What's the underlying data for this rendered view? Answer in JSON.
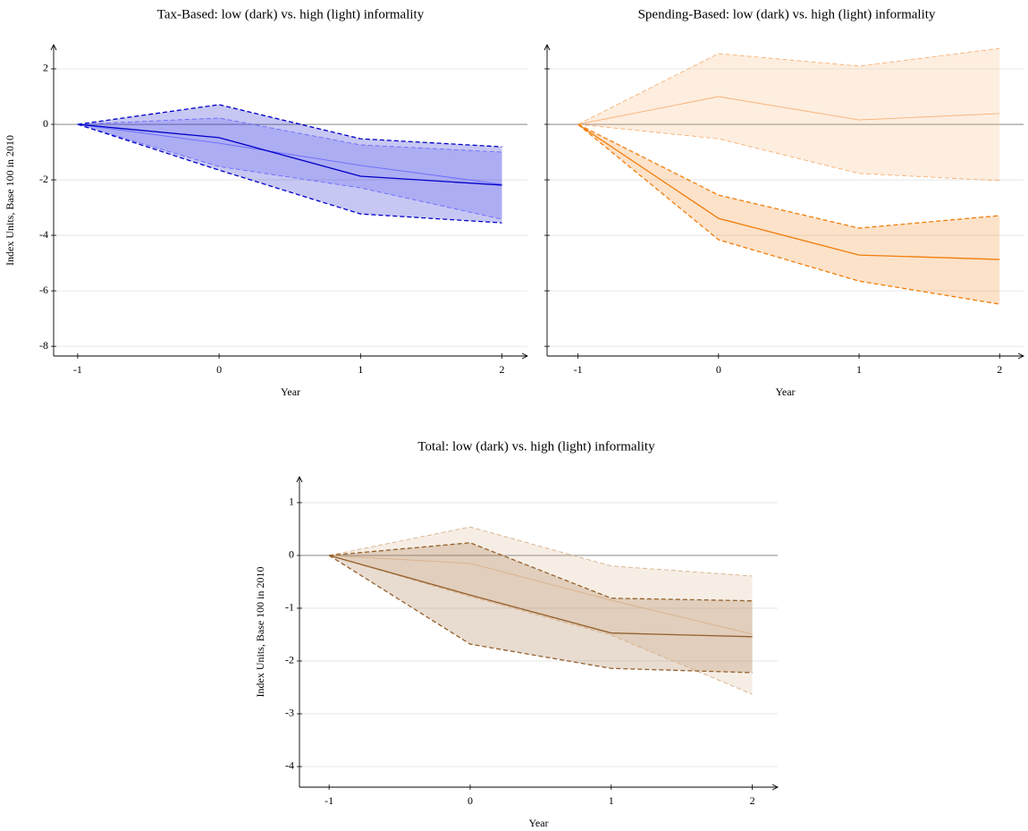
{
  "chart_data": [
    {
      "type": "line",
      "title": "Tax-Based: low (dark) vs. high (light) informality",
      "ylabel": "Index Units, Base 100 in 2010",
      "xlabel": "Year",
      "x": [
        -1,
        0,
        1,
        2
      ],
      "xlim": [
        -1.17,
        2.18
      ],
      "xticks": [
        -1,
        0,
        1,
        2
      ],
      "ylim": [
        -8.35,
        2.87
      ],
      "yticks": [
        -8,
        -6,
        -4,
        -2,
        0,
        2
      ],
      "show_ytick_labels": true,
      "grid": true,
      "zero_line": 0,
      "series": [
        {
          "color": "#6a6aff",
          "values": [
            0,
            -0.68,
            -1.48,
            -2.16
          ],
          "upper": [
            0,
            0.23,
            -0.74,
            -1.0
          ],
          "lower": [
            0,
            -1.52,
            -2.29,
            -3.42
          ]
        },
        {
          "color": "#0000c8",
          "values": [
            0,
            -0.48,
            -1.87,
            -2.19
          ],
          "upper": [
            0,
            0.71,
            -0.52,
            -0.81
          ],
          "lower": [
            0,
            -1.65,
            -3.23,
            -3.55
          ]
        }
      ]
    },
    {
      "type": "line",
      "title": "Spending-Based: low (dark) vs. high (light) informality",
      "xlabel": "Year",
      "x": [
        -1,
        0,
        1,
        2
      ],
      "xlim": [
        -1.22,
        2.17
      ],
      "xticks": [
        -1,
        0,
        1,
        2
      ],
      "ylim": [
        -8.35,
        2.87
      ],
      "yticks": [
        -8,
        -6,
        -4,
        -2,
        0,
        2
      ],
      "show_ytick_labels": false,
      "grid": true,
      "zero_line": 0,
      "series": [
        {
          "color": "#f8b074",
          "values": [
            0,
            1.0,
            0.16,
            0.39
          ],
          "upper": [
            0,
            2.55,
            2.1,
            2.74
          ],
          "lower": [
            0,
            -0.52,
            -1.77,
            -2.03
          ]
        },
        {
          "color": "#f07d0a",
          "values": [
            0,
            -3.39,
            -4.71,
            -4.87
          ],
          "upper": [
            0,
            -2.55,
            -3.74,
            -3.29
          ],
          "lower": [
            0,
            -4.16,
            -5.65,
            -6.48
          ]
        }
      ]
    },
    {
      "type": "line",
      "title": "Total: low (dark) vs. high (light) informality",
      "ylabel": "Index Units, Base 100 in 2010",
      "xlabel": "Year",
      "x": [
        -1,
        0,
        1,
        2
      ],
      "xlim": [
        -1.21,
        2.18
      ],
      "xticks": [
        -1,
        0,
        1,
        2
      ],
      "ylim": [
        -4.39,
        1.49
      ],
      "yticks": [
        -4,
        -3,
        -2,
        -1,
        0,
        1
      ],
      "show_ytick_labels": true,
      "grid": true,
      "zero_line": 0,
      "series": [
        {
          "color": "#d8b088",
          "values": [
            0,
            -0.15,
            -0.85,
            -1.49
          ],
          "upper": [
            0,
            0.54,
            -0.2,
            -0.39
          ],
          "lower": [
            0,
            -0.78,
            -1.51,
            -2.63
          ]
        },
        {
          "color": "#94602c",
          "values": [
            0,
            -0.75,
            -1.47,
            -1.54
          ],
          "upper": [
            0,
            0.24,
            -0.81,
            -0.86
          ],
          "lower": [
            0,
            -1.68,
            -2.14,
            -2.22
          ]
        }
      ]
    }
  ]
}
